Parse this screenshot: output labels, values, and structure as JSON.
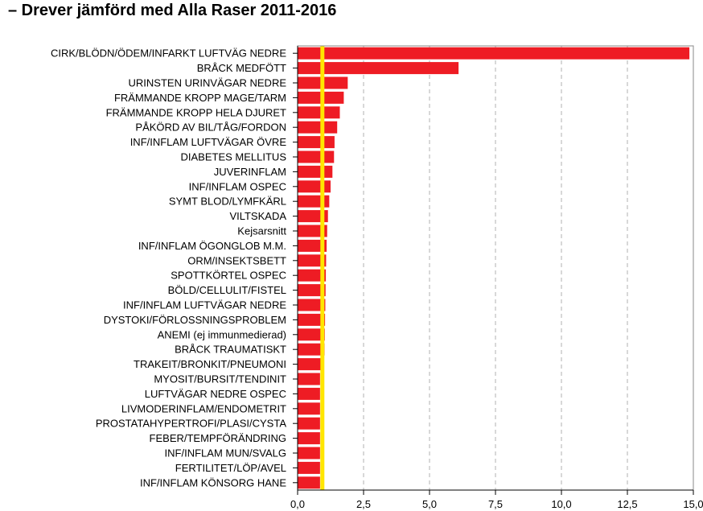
{
  "header": {
    "title": "– Drever jämförd med Alla Raser 2011-2016"
  },
  "colors": {
    "bar": "#ee1c24",
    "reference_line": "#ffe600",
    "grid": "#b0b0b0",
    "axis": "#000000"
  },
  "chart_data": {
    "type": "bar",
    "orientation": "horizontal",
    "title": "Drever jämförd med Alla Raser 2011-2016",
    "xlabel": "",
    "ylabel": "",
    "xlim": [
      0,
      15
    ],
    "x_ticks": [
      0,
      2.5,
      5,
      7.5,
      10,
      12.5,
      15
    ],
    "x_tick_labels": [
      "0,0",
      "2,5",
      "5,0",
      "7,5",
      "10,0",
      "12,5",
      "15,0"
    ],
    "grid": "vertical dashed",
    "reference_value": 1,
    "categories": [
      "CIRK/BLÖDN/ÖDEM/INFARKT LUFTVÄG NEDRE",
      "BRÅCK MEDFÖTT",
      "URINSTEN URINVÄGAR NEDRE",
      "FRÄMMANDE KROPP MAGE/TARM",
      "FRÄMMANDE KROPP HELA DJURET",
      "PÅKÖRD AV BIL/TÅG/FORDON",
      "INF/INFLAM LUFTVÄGAR ÖVRE",
      "DIABETES MELLITUS",
      "JUVERINFLAM",
      "INF/INFLAM OSPEC",
      "SYMT BLOD/LYMFKÄRL",
      "VILTSKADA",
      "Kejsarsnitt",
      "INF/INFLAM ÖGONGLOB M.M.",
      "ORM/INSEKTSBETT",
      "SPOTTKÖRTEL OSPEC",
      "BÖLD/CELLULIT/FISTEL",
      "INF/INFLAM LUFTVÄGAR NEDRE",
      "DYSTOKI/FÖRLOSSNINGSPROBLEM",
      "ANEMI (ej immunmedierad)",
      "BRÅCK TRAUMATISKT",
      "TRAKEIT/BRONKIT/PNEUMONI",
      "MYOSIT/BURSIT/TENDINIT",
      "LUFTVÄGAR NEDRE OSPEC",
      "LIVMODERINFLAM/ENDOMETRIT",
      "PROSTATAHYPERTROFI/PLASI/CYSTA",
      "FEBER/TEMPFÖRÄNDRING",
      "INF/INFLAM MUN/SVALG",
      "FERTILITET/LÖP/AVEL",
      "INF/INFLAM KÖNSORG HANE"
    ],
    "values": [
      14.85,
      6.1,
      1.9,
      1.75,
      1.6,
      1.5,
      1.4,
      1.38,
      1.32,
      1.25,
      1.2,
      1.15,
      1.12,
      1.1,
      1.08,
      1.07,
      1.06,
      1.05,
      1.04,
      1.03,
      1.02,
      0.9,
      0.85,
      0.85,
      0.85,
      0.85,
      0.85,
      0.85,
      0.85,
      0.85
    ]
  }
}
